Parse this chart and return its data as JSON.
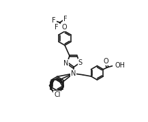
{
  "bg": "#ffffff",
  "lc": "#1a1a1a",
  "lw": 1.2,
  "fs": 7.0,
  "fs_small": 6.0,
  "xlim": [
    0.0,
    10.5
  ],
  "ylim": [
    0.5,
    9.5
  ]
}
